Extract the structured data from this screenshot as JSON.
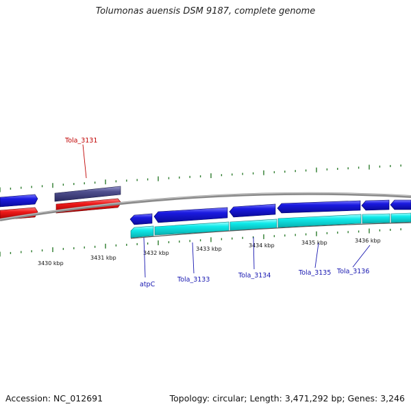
{
  "title": "Tolumonas auensis DSM 9187, complete genome",
  "footer": {
    "accession": "Accession: NC_012691",
    "summary": "Topology: circular; Length: 3,471,292 bp; Genes: 3,246"
  },
  "colors": {
    "forward_cds": "#1515dd",
    "forward_rna": "#e81515",
    "pseudo_gene": "#4a4a8c",
    "reverse_cds": "#1818d8",
    "reverse_rna": "#11e8e8",
    "backbone": "#8a8a8a",
    "ticks": "#2a7a2a",
    "label_top": "#c00000",
    "label_bottom": "#1515b0"
  },
  "kbp_labels": [
    "3430 kbp",
    "3431 kbp",
    "3432 kbp",
    "3433 kbp",
    "3434 kbp",
    "3435 kbp",
    "3436 kbp"
  ],
  "genes": [
    "Tola_3131",
    "atpC",
    "Tola_3133",
    "Tola_3134",
    "Tola_3135",
    "Tola_3136"
  ]
}
